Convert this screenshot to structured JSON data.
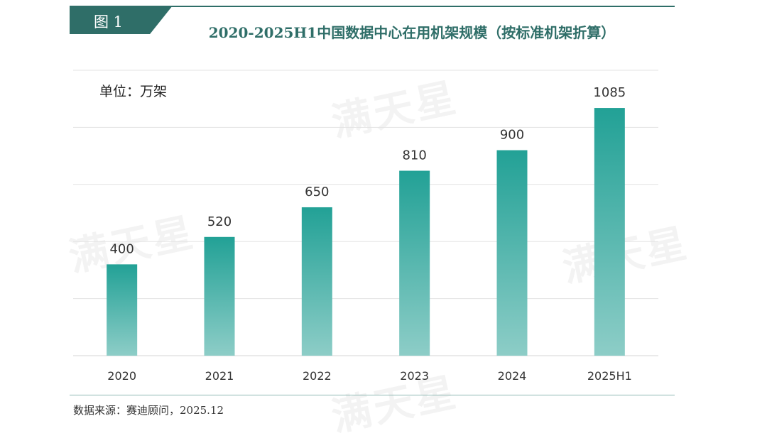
{
  "header": {
    "figure_label": "图 1",
    "title": "2020-2025H1中国数据中心在用机架规模（按标准机架折算）"
  },
  "unit_label": "单位：万架",
  "source": "数据来源：赛迪顾问，2025.12",
  "watermark": "满天星",
  "colors": {
    "header": "#2f6e68",
    "bar_top": "#22a196",
    "bar_bottom": "#8dcdc7",
    "grid": "#e3e3e3"
  },
  "chart_data": {
    "type": "bar",
    "categories": [
      "2020",
      "2021",
      "2022",
      "2023",
      "2024",
      "2025H1"
    ],
    "values": [
      400,
      520,
      650,
      810,
      900,
      1085
    ],
    "data_labels": [
      "400",
      "520",
      "650",
      "810",
      "900",
      "1085"
    ],
    "title": "2020-2025H1中国数据中心在用机架规模（按标准机架折算）",
    "xlabel": "",
    "ylabel": "",
    "ylim": [
      0,
      1250
    ],
    "grid": true,
    "legend": "none"
  }
}
